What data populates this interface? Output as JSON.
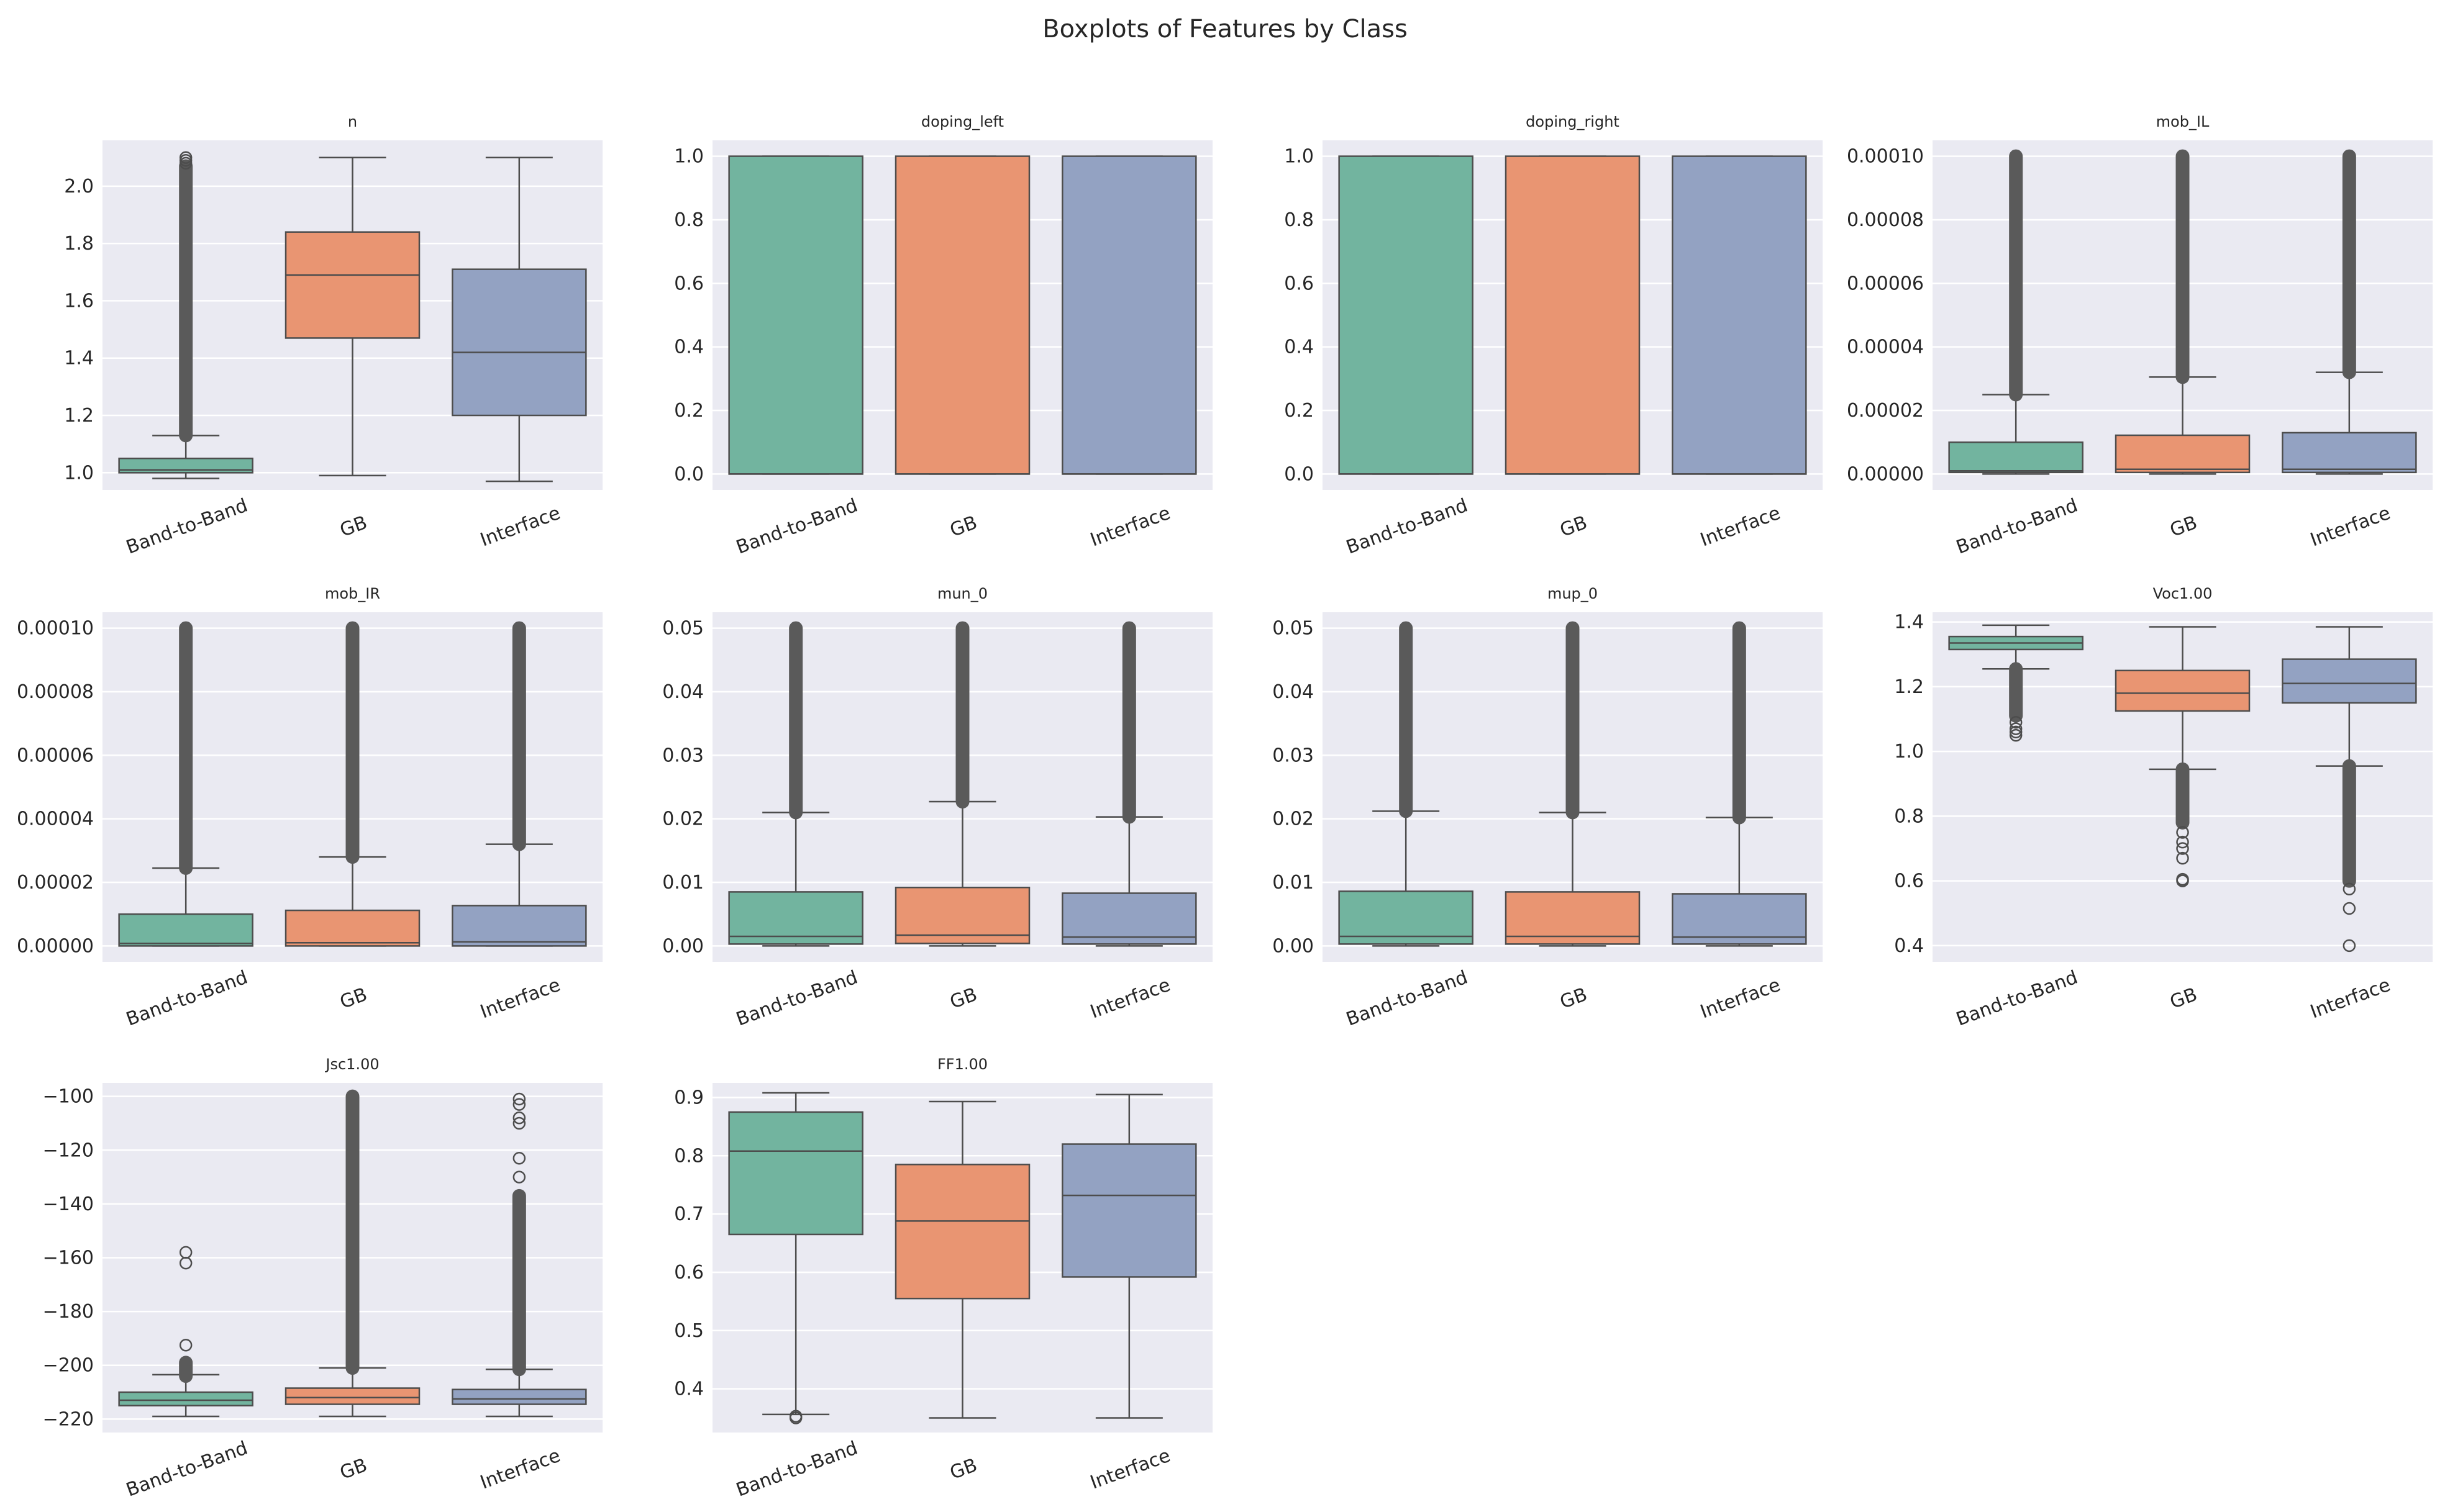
{
  "figure": {
    "title": "Boxplots of Features by Class"
  },
  "chart_data": {
    "type": "boxplot",
    "categories": [
      "Band-to-Band",
      "GB",
      "Interface"
    ],
    "colors": [
      "#72b49f",
      "#e99572",
      "#93a2c2"
    ],
    "subplots": [
      {
        "title": "n",
        "ylim": [
          0.94,
          2.16
        ],
        "ticks": [
          1.0,
          1.2,
          1.4,
          1.6,
          1.8,
          2.0
        ],
        "tick_labels": [
          "1.0",
          "1.2",
          "1.4",
          "1.6",
          "1.8",
          "2.0"
        ],
        "boxes": [
          {
            "whisker_low": 0.98,
            "q1": 1.0,
            "median": 1.01,
            "q3": 1.05,
            "whisker_high": 1.13,
            "dense_outliers": [
              1.13,
              2.07
            ],
            "outliers": [
              2.08,
              2.09,
              2.1
            ]
          },
          {
            "whisker_low": 0.99,
            "q1": 1.47,
            "median": 1.69,
            "q3": 1.84,
            "whisker_high": 2.1,
            "dense_outliers": [],
            "outliers": []
          },
          {
            "whisker_low": 0.97,
            "q1": 1.2,
            "median": 1.42,
            "q3": 1.71,
            "whisker_high": 2.1,
            "dense_outliers": [],
            "outliers": []
          }
        ]
      },
      {
        "title": "doping_left",
        "ylim": [
          -0.05,
          1.05
        ],
        "ticks": [
          0.0,
          0.2,
          0.4,
          0.6,
          0.8,
          1.0
        ],
        "tick_labels": [
          "0.0",
          "0.2",
          "0.4",
          "0.6",
          "0.8",
          "1.0"
        ],
        "boxes": [
          {
            "whisker_low": 0.0,
            "q1": 0.0,
            "median": 0.0,
            "q3": 1.0,
            "whisker_high": 1.0,
            "dense_outliers": [],
            "outliers": []
          },
          {
            "whisker_low": 0.0,
            "q1": 0.0,
            "median": 0.0,
            "q3": 1.0,
            "whisker_high": 1.0,
            "dense_outliers": [],
            "outliers": []
          },
          {
            "whisker_low": 0.0,
            "q1": 0.0,
            "median": 0.0,
            "q3": 1.0,
            "whisker_high": 1.0,
            "dense_outliers": [],
            "outliers": []
          }
        ]
      },
      {
        "title": "doping_right",
        "ylim": [
          -0.05,
          1.05
        ],
        "ticks": [
          0.0,
          0.2,
          0.4,
          0.6,
          0.8,
          1.0
        ],
        "tick_labels": [
          "0.0",
          "0.2",
          "0.4",
          "0.6",
          "0.8",
          "1.0"
        ],
        "boxes": [
          {
            "whisker_low": 0.0,
            "q1": 0.0,
            "median": 0.0,
            "q3": 1.0,
            "whisker_high": 1.0,
            "dense_outliers": [],
            "outliers": []
          },
          {
            "whisker_low": 0.0,
            "q1": 0.0,
            "median": 0.0,
            "q3": 1.0,
            "whisker_high": 1.0,
            "dense_outliers": [],
            "outliers": []
          },
          {
            "whisker_low": 0.0,
            "q1": 0.0,
            "median": 0.0,
            "q3": 1.0,
            "whisker_high": 1.0,
            "dense_outliers": [],
            "outliers": []
          }
        ]
      },
      {
        "title": "mob_IL",
        "ylim": [
          -5e-06,
          0.000105
        ],
        "ticks": [
          0.0,
          2e-05,
          4e-05,
          6e-05,
          8e-05,
          0.0001
        ],
        "tick_labels": [
          "0.00000",
          "0.00002",
          "0.00004",
          "0.00006",
          "0.00008",
          "0.00010"
        ],
        "boxes": [
          {
            "whisker_low": 0.0,
            "q1": 5e-07,
            "median": 1e-06,
            "q3": 1e-05,
            "whisker_high": 2.5e-05,
            "dense_outliers": [
              2.5e-05,
              0.0001
            ],
            "outliers": []
          },
          {
            "whisker_low": 0.0,
            "q1": 5e-07,
            "median": 1.5e-06,
            "q3": 1.22e-05,
            "whisker_high": 3.05e-05,
            "dense_outliers": [
              3.05e-05,
              0.0001
            ],
            "outliers": []
          },
          {
            "whisker_low": 0.0,
            "q1": 5e-07,
            "median": 1.5e-06,
            "q3": 1.3e-05,
            "whisker_high": 3.2e-05,
            "dense_outliers": [
              3.2e-05,
              0.0001
            ],
            "outliers": []
          }
        ]
      },
      {
        "title": "mob_IR",
        "ylim": [
          -5e-06,
          0.000105
        ],
        "ticks": [
          0.0,
          2e-05,
          4e-05,
          6e-05,
          8e-05,
          0.0001
        ],
        "tick_labels": [
          "0.00000",
          "0.00002",
          "0.00004",
          "0.00006",
          "0.00008",
          "0.00010"
        ],
        "boxes": [
          {
            "whisker_low": 0.0,
            "q1": 0.0,
            "median": 8e-07,
            "q3": 1e-05,
            "whisker_high": 2.45e-05,
            "dense_outliers": [
              2.45e-05,
              0.0001
            ],
            "outliers": []
          },
          {
            "whisker_low": 0.0,
            "q1": 0.0,
            "median": 1e-06,
            "q3": 1.12e-05,
            "whisker_high": 2.8e-05,
            "dense_outliers": [
              2.8e-05,
              0.0001
            ],
            "outliers": []
          },
          {
            "whisker_low": 0.0,
            "q1": 0.0,
            "median": 1.3e-06,
            "q3": 1.27e-05,
            "whisker_high": 3.2e-05,
            "dense_outliers": [
              3.2e-05,
              0.0001
            ],
            "outliers": []
          }
        ]
      },
      {
        "title": "mun_0",
        "ylim": [
          -0.0025,
          0.0525
        ],
        "ticks": [
          0.0,
          0.01,
          0.02,
          0.03,
          0.04,
          0.05
        ],
        "tick_labels": [
          "0.00",
          "0.01",
          "0.02",
          "0.03",
          "0.04",
          "0.05"
        ],
        "boxes": [
          {
            "whisker_low": 0.0,
            "q1": 0.0003,
            "median": 0.0015,
            "q3": 0.0085,
            "whisker_high": 0.021,
            "dense_outliers": [
              0.021,
              0.05
            ],
            "outliers": []
          },
          {
            "whisker_low": 0.0,
            "q1": 0.0004,
            "median": 0.0017,
            "q3": 0.0092,
            "whisker_high": 0.0227,
            "dense_outliers": [
              0.0227,
              0.05
            ],
            "outliers": []
          },
          {
            "whisker_low": 0.0,
            "q1": 0.0003,
            "median": 0.0014,
            "q3": 0.0083,
            "whisker_high": 0.0203,
            "dense_outliers": [
              0.0203,
              0.05
            ],
            "outliers": []
          }
        ]
      },
      {
        "title": "mup_0",
        "ylim": [
          -0.0025,
          0.0525
        ],
        "ticks": [
          0.0,
          0.01,
          0.02,
          0.03,
          0.04,
          0.05
        ],
        "tick_labels": [
          "0.00",
          "0.01",
          "0.02",
          "0.03",
          "0.04",
          "0.05"
        ],
        "boxes": [
          {
            "whisker_low": 0.0,
            "q1": 0.0003,
            "median": 0.0015,
            "q3": 0.0086,
            "whisker_high": 0.0212,
            "dense_outliers": [
              0.0212,
              0.05
            ],
            "outliers": []
          },
          {
            "whisker_low": 0.0,
            "q1": 0.0003,
            "median": 0.0015,
            "q3": 0.0085,
            "whisker_high": 0.021,
            "dense_outliers": [
              0.021,
              0.05
            ],
            "outliers": []
          },
          {
            "whisker_low": 0.0,
            "q1": 0.0003,
            "median": 0.0014,
            "q3": 0.0082,
            "whisker_high": 0.0202,
            "dense_outliers": [
              0.0202,
              0.05
            ],
            "outliers": []
          }
        ]
      },
      {
        "title": "Voc1.00",
        "ylim": [
          0.35,
          1.43
        ],
        "ticks": [
          0.4,
          0.6,
          0.8,
          1.0,
          1.2,
          1.4
        ],
        "tick_labels": [
          "0.4",
          "0.6",
          "0.8",
          "1.0",
          "1.2",
          "1.4"
        ],
        "boxes": [
          {
            "whisker_low": 1.255,
            "q1": 1.315,
            "median": 1.335,
            "q3": 1.355,
            "whisker_high": 1.39,
            "dense_outliers": [
              1.11,
              1.255
            ],
            "outliers": [
              1.05,
              1.06,
              1.07,
              1.09
            ]
          },
          {
            "whisker_low": 0.945,
            "q1": 1.125,
            "median": 1.18,
            "q3": 1.25,
            "whisker_high": 1.385,
            "dense_outliers": [
              0.78,
              0.945
            ],
            "outliers": [
              0.6,
              0.605,
              0.67,
              0.7,
              0.72,
              0.75
            ]
          },
          {
            "whisker_low": 0.955,
            "q1": 1.15,
            "median": 1.21,
            "q3": 1.285,
            "whisker_high": 1.385,
            "dense_outliers": [
              0.6,
              0.955
            ],
            "outliers": [
              0.575,
              0.515,
              0.4
            ]
          }
        ]
      },
      {
        "title": "Jsc1.00",
        "ylim": [
          -225,
          -95
        ],
        "ticks": [
          -220,
          -200,
          -180,
          -160,
          -140,
          -120,
          -100
        ],
        "tick_labels": [
          "−220",
          "−200",
          "−180",
          "−160",
          "−140",
          "−120",
          "−100"
        ],
        "boxes": [
          {
            "whisker_low": -219,
            "q1": -215,
            "median": -213,
            "q3": -210,
            "whisker_high": -203.5,
            "dense_outliers": [
              -204,
              -199
            ],
            "outliers": [
              -192.5,
              -162,
              -158
            ]
          },
          {
            "whisker_low": -219,
            "q1": -214.5,
            "median": -212,
            "q3": -208.5,
            "whisker_high": -201,
            "dense_outliers": [
              -201,
              -100
            ],
            "outliers": []
          },
          {
            "whisker_low": -219,
            "q1": -214.5,
            "median": -212.5,
            "q3": -209,
            "whisker_high": -201.5,
            "dense_outliers": [
              -201.5,
              -137
            ],
            "outliers": [
              -130,
              -123,
              -110,
              -108,
              -103,
              -101
            ]
          }
        ]
      },
      {
        "title": "FF1.00",
        "ylim": [
          0.325,
          0.925
        ],
        "ticks": [
          0.4,
          0.5,
          0.6,
          0.7,
          0.8,
          0.9
        ],
        "tick_labels": [
          "0.4",
          "0.5",
          "0.6",
          "0.7",
          "0.8",
          "0.9"
        ],
        "boxes": [
          {
            "whisker_low": 0.356,
            "q1": 0.665,
            "median": 0.808,
            "q3": 0.875,
            "whisker_high": 0.908,
            "dense_outliers": [],
            "outliers": [
              0.35,
              0.353
            ]
          },
          {
            "whisker_low": 0.35,
            "q1": 0.555,
            "median": 0.688,
            "q3": 0.785,
            "whisker_high": 0.893,
            "dense_outliers": [],
            "outliers": []
          },
          {
            "whisker_low": 0.35,
            "q1": 0.592,
            "median": 0.732,
            "q3": 0.82,
            "whisker_high": 0.905,
            "dense_outliers": [],
            "outliers": []
          }
        ]
      }
    ]
  }
}
